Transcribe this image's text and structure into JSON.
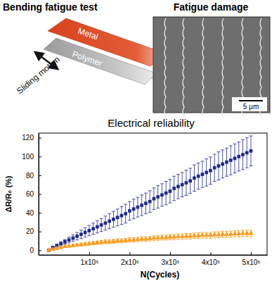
{
  "chart_data": {
    "type": "scatter",
    "title": "Electrical reliability",
    "x_label": "N(Cycles)",
    "y_label": "ΔR/R₀ (%)",
    "x": [
      0,
      10000,
      20000,
      30000,
      40000,
      50000,
      60000,
      70000,
      80000,
      90000,
      100000,
      110000,
      120000,
      130000,
      140000,
      150000,
      160000,
      170000,
      180000,
      190000,
      200000,
      210000,
      220000,
      230000,
      240000,
      250000,
      260000,
      270000,
      280000,
      290000,
      300000,
      310000,
      320000,
      330000,
      340000,
      350000,
      360000,
      370000,
      380000,
      390000,
      400000,
      410000,
      420000,
      430000,
      440000,
      450000,
      460000,
      470000,
      480000,
      490000,
      500000
    ],
    "series": [
      {
        "color": "#1f2a8a",
        "marker": "square",
        "values": [
          0,
          3,
          5,
          7,
          9,
          11,
          13,
          15,
          17,
          19,
          21,
          23,
          25,
          27,
          29,
          31,
          33,
          35,
          37,
          39,
          42,
          44,
          46,
          48,
          50,
          52,
          55,
          57,
          59,
          61,
          63,
          66,
          68,
          70,
          72,
          74,
          77,
          79,
          81,
          83,
          85,
          88,
          90,
          92,
          94,
          96,
          98,
          100,
          102,
          104,
          106
        ],
        "errors": [
          0.5,
          1,
          1.5,
          2,
          2.5,
          3,
          3.5,
          4,
          4.5,
          5,
          5.5,
          6,
          6.5,
          7,
          7.5,
          8,
          8.5,
          9,
          9.5,
          10,
          10,
          10.5,
          10.5,
          11,
          11,
          11.5,
          11.5,
          12,
          12,
          12.5,
          12.5,
          13,
          13,
          13,
          13.5,
          13.5,
          14,
          14,
          14,
          14.5,
          14.5,
          14.5,
          15,
          15,
          15,
          15.5,
          15.5,
          15.5,
          16,
          16,
          16
        ]
      },
      {
        "color": "#ff9a1a",
        "marker": "triangle",
        "values": [
          0,
          1,
          2,
          3,
          4,
          4.5,
          5,
          5.5,
          6,
          6.5,
          7,
          7.5,
          8,
          8.5,
          9,
          9,
          9.5,
          10,
          10,
          10.5,
          11,
          11,
          11.5,
          12,
          12,
          12.5,
          13,
          13,
          13.5,
          13.5,
          14,
          14,
          14.5,
          14.5,
          15,
          15,
          15.5,
          15.5,
          16,
          16,
          16,
          16.5,
          16.5,
          17,
          17,
          17,
          17.5,
          17.5,
          18,
          18,
          18
        ],
        "errors": [
          0.3,
          0.5,
          0.7,
          0.9,
          1,
          1.1,
          1.2,
          1.3,
          1.4,
          1.5,
          1.6,
          1.7,
          1.8,
          1.9,
          2,
          2,
          2.1,
          2.1,
          2.2,
          2.2,
          2.3,
          2.3,
          2.4,
          2.4,
          2.5,
          2.5,
          2.6,
          2.6,
          2.7,
          2.7,
          2.8,
          2.8,
          2.9,
          2.9,
          3,
          3,
          3,
          3.1,
          3.1,
          3.1,
          3.2,
          3.2,
          3.2,
          3.3,
          3.3,
          3.3,
          3.4,
          3.4,
          3.4,
          3.5,
          3.5
        ]
      }
    ],
    "xlim": [
      -25000,
      540000
    ],
    "xticks": [
      {
        "value": 100000,
        "label": "1x10⁵"
      },
      {
        "value": 200000,
        "label": "2x10⁵"
      },
      {
        "value": 300000,
        "label": "3x10⁵"
      },
      {
        "value": 400000,
        "label": "4x10⁵"
      },
      {
        "value": 500000,
        "label": "5x10⁵"
      }
    ],
    "ylim": [
      -5,
      125
    ],
    "yticks": [
      0,
      20,
      40,
      60,
      80,
      100,
      120
    ],
    "grid": false
  },
  "schematic": {
    "title": "Bending fatigue test",
    "metal": "Metal",
    "polymer": "Polymer",
    "motion": "Sliding motion"
  },
  "micrograph": {
    "title": "Fatigue damage",
    "scale_bar": "5 μm"
  }
}
